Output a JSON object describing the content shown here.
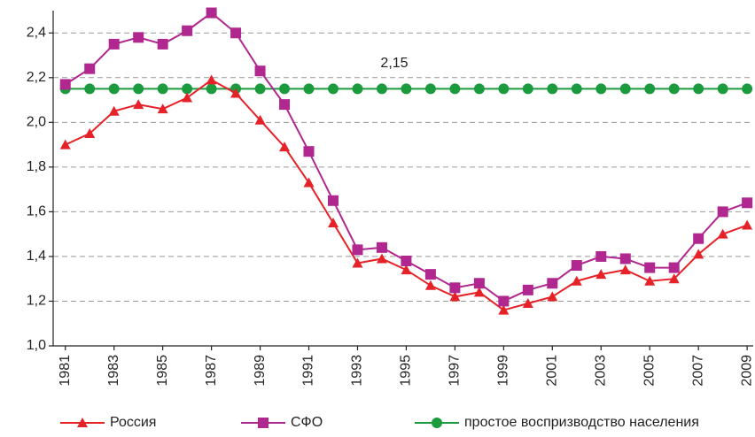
{
  "chart_data": {
    "type": "line",
    "annotation": "2,15",
    "x": [
      1981,
      1982,
      1983,
      1984,
      1985,
      1986,
      1987,
      1988,
      1989,
      1990,
      1991,
      1992,
      1993,
      1994,
      1995,
      1996,
      1997,
      1998,
      1999,
      2000,
      2001,
      2002,
      2003,
      2004,
      2005,
      2006,
      2007,
      2008,
      2009
    ],
    "series": [
      {
        "name": "Россия",
        "color": "#e62229",
        "marker": "triangle",
        "values": [
          1.9,
          1.95,
          2.05,
          2.08,
          2.06,
          2.11,
          2.19,
          2.13,
          2.01,
          1.89,
          1.73,
          1.55,
          1.37,
          1.39,
          1.34,
          1.27,
          1.22,
          1.24,
          1.16,
          1.19,
          1.22,
          1.29,
          1.32,
          1.34,
          1.29,
          1.3,
          1.41,
          1.5,
          1.54
        ]
      },
      {
        "name": "СФО",
        "color": "#b0278f",
        "marker": "square",
        "values": [
          2.17,
          2.24,
          2.35,
          2.38,
          2.35,
          2.41,
          2.49,
          2.4,
          2.23,
          2.08,
          1.87,
          1.65,
          1.43,
          1.44,
          1.38,
          1.32,
          1.26,
          1.28,
          1.2,
          1.25,
          1.28,
          1.36,
          1.4,
          1.39,
          1.35,
          1.35,
          1.48,
          1.6,
          1.64
        ]
      },
      {
        "name": "простое воспризводство населения",
        "color": "#1c9a3e",
        "marker": "circle",
        "values": [
          2.15,
          2.15,
          2.15,
          2.15,
          2.15,
          2.15,
          2.15,
          2.15,
          2.15,
          2.15,
          2.15,
          2.15,
          2.15,
          2.15,
          2.15,
          2.15,
          2.15,
          2.15,
          2.15,
          2.15,
          2.15,
          2.15,
          2.15,
          2.15,
          2.15,
          2.15,
          2.15,
          2.15,
          2.15
        ]
      }
    ],
    "xlim": [
      1980.5,
      2009.25
    ],
    "xticks": [
      1981,
      1983,
      1985,
      1987,
      1989,
      1991,
      1993,
      1995,
      1997,
      1999,
      2001,
      2003,
      2005,
      2007,
      2009
    ],
    "ylim": [
      1.0,
      2.5
    ],
    "yticks": [
      {
        "value": 1.0,
        "label": "1,0"
      },
      {
        "value": 1.2,
        "label": "1,2"
      },
      {
        "value": 1.4,
        "label": "1,4"
      },
      {
        "value": 1.6,
        "label": "1,6"
      },
      {
        "value": 1.8,
        "label": "1,8"
      },
      {
        "value": 2.0,
        "label": "2,0"
      },
      {
        "value": 2.2,
        "label": "2,2"
      },
      {
        "value": 2.4,
        "label": "2,4"
      }
    ],
    "grid": true
  }
}
